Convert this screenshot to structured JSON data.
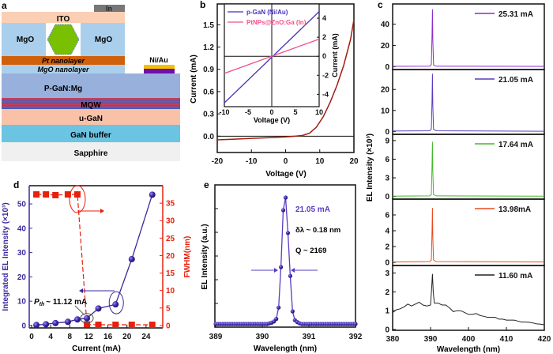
{
  "panel_labels": {
    "a": "a",
    "b": "b",
    "c": "c",
    "d": "d",
    "e": "e"
  },
  "diagram": {
    "in": "In",
    "ito": "ITO",
    "mgo_left": "MgO",
    "mgo_right": "MgO",
    "pt_nanolayer": "Pt nanolayer",
    "mgo_nanolayer": "MgO nanolayer",
    "ni_au": "Ni/Au",
    "p_gan": "P-GaN:Mg",
    "mqw": "MQW",
    "u_gan": "u-GaN",
    "gan_buffer": "GaN buffer",
    "sapphire": "Sapphire"
  },
  "chart_data": [
    {
      "type": "line",
      "panel": "b",
      "xlabel": "Voltage (V)",
      "ylabel": "Current (mA)",
      "xlim": [
        -20,
        20
      ],
      "ylim": [
        -0.22,
        1.78
      ],
      "xticks": [
        -20,
        -10,
        0,
        10,
        20
      ],
      "yticks": [
        0.0,
        0.3,
        0.6,
        0.9,
        1.2,
        1.5
      ],
      "color": "#a01c10",
      "x": [
        -20,
        -15,
        -10,
        -5,
        0,
        3,
        5,
        7,
        9,
        11,
        13,
        15,
        17,
        19,
        20
      ],
      "y": [
        -0.05,
        -0.04,
        -0.03,
        -0.02,
        -0.01,
        0,
        0.01,
        0.04,
        0.12,
        0.26,
        0.45,
        0.68,
        0.95,
        1.3,
        1.57
      ],
      "inset": {
        "type": "line",
        "xlabel": "Voltage (V)",
        "ylabel": "Current (mA)",
        "xlim": [
          -10,
          10
        ],
        "ylim": [
          -5.3,
          5.5
        ],
        "xticks": [
          -10,
          -5,
          0,
          5,
          10
        ],
        "yticks": [
          -4,
          -2,
          0,
          2,
          4
        ],
        "legend": "top-left",
        "series": [
          {
            "name": "p-GaN (Ni/Au)",
            "color": "#4b2fc0",
            "x": [
              -10,
              10
            ],
            "y": [
              -4.9,
              4.7
            ]
          },
          {
            "name": "PtNPs@ZnO:Ga (In)",
            "color": "#f0508c",
            "x": [
              -10,
              10
            ],
            "y": [
              -1.8,
              1.8
            ]
          }
        ]
      }
    },
    {
      "type": "line",
      "panel": "c",
      "xlabel": "Wavelength (nm)",
      "ylabel": "EL Intensity (×10³)",
      "xlim": [
        380,
        420
      ],
      "xticks": [
        380,
        390,
        400,
        410,
        420
      ],
      "subplots": [
        {
          "name": "25.31 mA",
          "color": "#8a2ccc",
          "ylim": [
            -2,
            59
          ],
          "yticks": [
            0,
            20,
            40
          ],
          "x": [
            380,
            389.8,
            390.2,
            390.4,
            390.5,
            390.6,
            390.8,
            391.5,
            420
          ],
          "y": [
            0.3,
            0.4,
            2,
            30,
            54,
            25,
            1.5,
            0.4,
            0.2
          ]
        },
        {
          "name": "21.05 mA",
          "color": "#5a3cc0",
          "ylim": [
            -1,
            29.5
          ],
          "yticks": [
            0,
            10,
            20
          ],
          "x": [
            380,
            389.8,
            390.2,
            390.4,
            390.5,
            390.6,
            390.8,
            391.5,
            420
          ],
          "y": [
            0.2,
            0.3,
            1.2,
            15,
            27.5,
            12,
            1,
            0.3,
            0.1
          ]
        },
        {
          "name": "17.64 mA",
          "color": "#44b82c",
          "ylim": [
            -0.3,
            10
          ],
          "yticks": [
            0,
            3,
            6,
            9
          ],
          "x": [
            380,
            389.8,
            390.2,
            390.4,
            390.5,
            390.6,
            390.8,
            391.5,
            420
          ],
          "y": [
            0.05,
            0.1,
            0.3,
            5,
            8.8,
            4,
            0.3,
            0.1,
            0.05
          ]
        },
        {
          "name": "13.98mA",
          "color": "#e84a1e",
          "ylim": [
            -0.3,
            8
          ],
          "yticks": [
            0,
            2,
            4,
            6
          ],
          "x": [
            380,
            389.8,
            390.2,
            390.4,
            390.5,
            390.6,
            390.8,
            391.5,
            420
          ],
          "y": [
            0.05,
            0.1,
            0.3,
            4,
            6.9,
            3,
            0.3,
            0.1,
            0.05
          ]
        },
        {
          "name": "11.60 mA",
          "color": "#222222",
          "ylim": [
            0,
            3.4
          ],
          "yticks": [
            0,
            1,
            2,
            3
          ],
          "x": [
            380,
            381,
            382,
            383,
            384,
            385,
            386,
            387,
            388,
            389,
            390,
            390.3,
            390.5,
            390.7,
            391,
            392,
            393,
            394,
            395,
            396,
            397,
            398,
            399,
            400,
            401,
            402,
            403,
            404,
            405,
            406,
            407,
            408,
            409,
            410,
            411,
            412,
            413,
            414,
            415,
            416,
            417,
            418,
            419,
            420
          ],
          "y": [
            0.9,
            1.05,
            1.1,
            1.2,
            1.35,
            1.25,
            1.35,
            1.45,
            1.3,
            1.25,
            1.3,
            2.2,
            2.95,
            2.0,
            1.4,
            1.4,
            1.3,
            1.3,
            1.15,
            0.95,
            1.0,
            1.0,
            0.9,
            0.8,
            0.8,
            0.85,
            0.75,
            0.7,
            0.65,
            0.65,
            0.65,
            0.55,
            0.55,
            0.5,
            0.5,
            0.5,
            0.45,
            0.4,
            0.4,
            0.38,
            0.35,
            0.3,
            0.28,
            0.25
          ]
        }
      ]
    },
    {
      "type": "scatter",
      "panel": "d",
      "xlabel": "Current (mA)",
      "ylabel": "Integrated EL Intensity (×10³)",
      "ylabel_right": "FWHM(nm)",
      "xlim": [
        -0.5,
        27.5
      ],
      "ylim": [
        -1,
        57.5
      ],
      "ylim_right": [
        -0.7,
        40
      ],
      "xticks": [
        0,
        4,
        8,
        12,
        16,
        20,
        24
      ],
      "yticks": [
        0,
        10,
        20,
        30,
        40,
        50
      ],
      "yticks_right": [
        0,
        5,
        10,
        15,
        20,
        25,
        30,
        35
      ],
      "annotation": "~ 11.12 mA",
      "annotation_symbol": "P",
      "annotation_sub": "th",
      "series": [
        {
          "axis": "left",
          "color": "#3a2a9e",
          "x": [
            1,
            3,
            5,
            7.6,
            9.6,
            11.6,
            14,
            17.6,
            21,
            25.3
          ],
          "y": [
            0.2,
            0.5,
            1.0,
            1.5,
            2.5,
            3.0,
            7.0,
            8.7,
            27.3,
            53.8
          ]
        },
        {
          "axis": "right",
          "color": "#e8200c",
          "x": [
            1,
            3,
            5,
            7.6,
            9.6,
            11.6,
            14,
            17.6,
            21,
            25.3
          ],
          "y": [
            37.5,
            37.5,
            37.3,
            37.5,
            37.5,
            0.3,
            0.2,
            0.2,
            0.2,
            0.2
          ]
        }
      ]
    },
    {
      "type": "line",
      "panel": "e",
      "xlabel": "Wavelength (nm)",
      "ylabel": "EL Intensity (a.u.)",
      "xlim": [
        389,
        392
      ],
      "ylim": [
        0,
        1
      ],
      "xticks": [
        389,
        390,
        391,
        392
      ],
      "color": "#5a3cc0",
      "annotations": {
        "current": "21.05 mA",
        "linewidth": "δλ ~ 0.18 nm",
        "q": "Q ~ 2169"
      },
      "x": [
        389,
        389.05,
        389.1,
        389.15,
        389.2,
        389.25,
        389.3,
        389.35,
        389.4,
        389.45,
        389.5,
        389.55,
        389.6,
        389.65,
        389.7,
        389.75,
        389.8,
        389.85,
        389.9,
        389.95,
        390,
        390.05,
        390.1,
        390.15,
        390.2,
        390.25,
        390.3,
        390.35,
        390.4,
        390.45,
        390.5,
        390.55,
        390.6,
        390.65,
        390.7,
        390.75,
        390.8,
        390.85,
        390.9,
        390.95,
        391,
        391.05,
        391.1,
        391.15,
        391.2,
        391.25,
        391.3,
        391.35,
        391.4,
        391.45,
        391.5,
        391.55,
        391.6,
        391.65,
        391.7,
        391.75,
        391.8,
        391.85,
        391.9,
        391.95,
        392
      ],
      "y": [
        0,
        0,
        0,
        0,
        0,
        0,
        0,
        0,
        0,
        0,
        0,
        0,
        0,
        0,
        0,
        0,
        0,
        0,
        0,
        0,
        0,
        0,
        0,
        0.005,
        0.01,
        0.02,
        0.04,
        0.13,
        0.45,
        0.9,
        1.0,
        0.72,
        0.38,
        0.1,
        0.03,
        0.015,
        0.005,
        0,
        0,
        0,
        0,
        0,
        0,
        0,
        0,
        0,
        0,
        0,
        0,
        0,
        0,
        0,
        0,
        0,
        0,
        0,
        0,
        0,
        0,
        0,
        0
      ]
    }
  ]
}
